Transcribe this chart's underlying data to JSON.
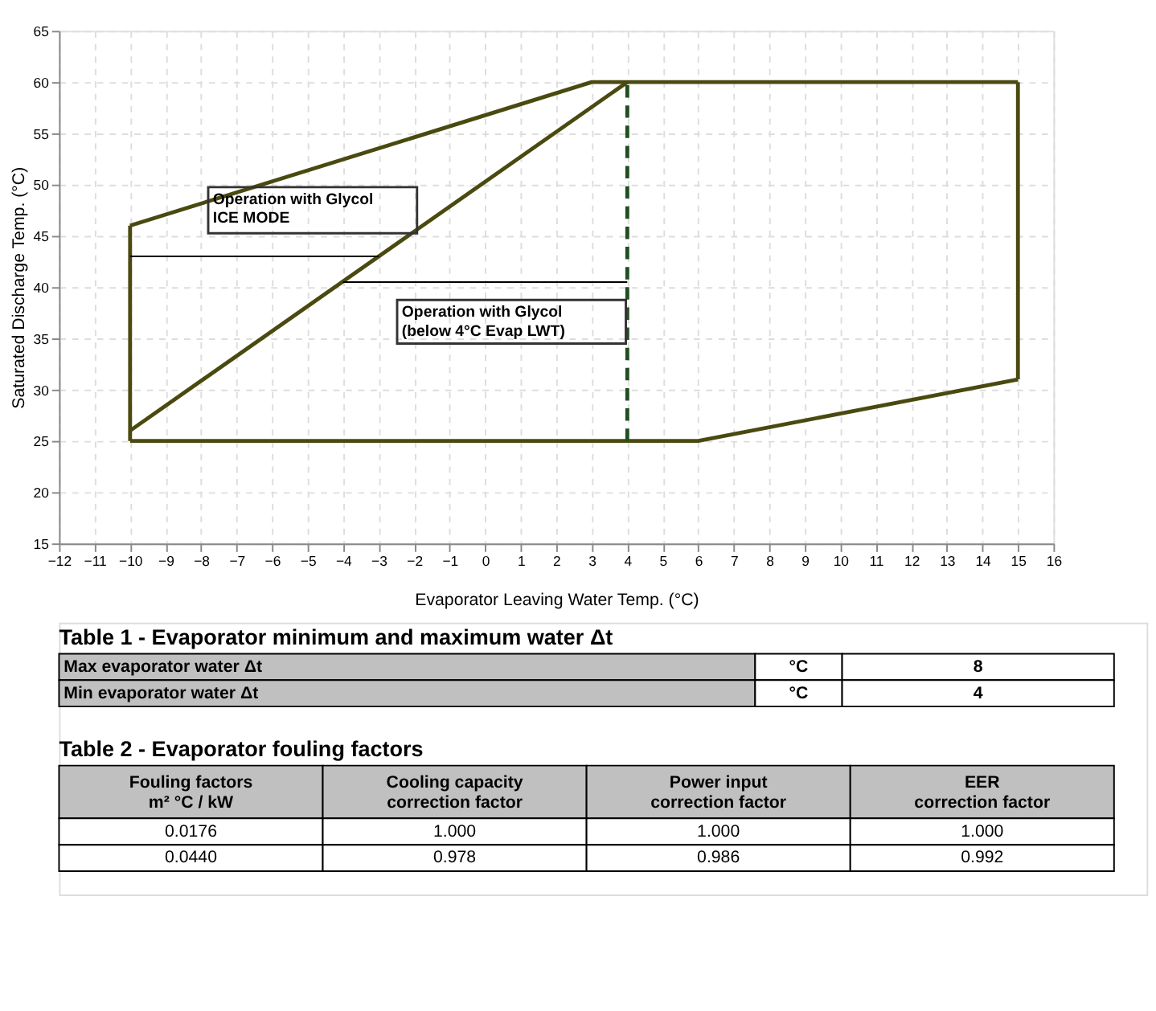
{
  "chart_data": {
    "type": "line",
    "xlabel": "Evaporator Leaving  Water Temp.  (°C)",
    "ylabel": "Saturated Discharge Temp. (°C)",
    "xlim": [
      -12,
      16
    ],
    "ylim": [
      15,
      65
    ],
    "xticks": [
      -12,
      -11,
      -10,
      -9,
      -8,
      -7,
      -6,
      -5,
      -4,
      -3,
      -2,
      -1,
      0,
      1,
      2,
      3,
      4,
      5,
      6,
      7,
      8,
      9,
      10,
      11,
      12,
      13,
      14,
      15,
      16
    ],
    "yticks": [
      15,
      20,
      25,
      30,
      35,
      40,
      45,
      50,
      55,
      60,
      65
    ],
    "grid": true,
    "marker": "none",
    "series": [
      {
        "color": "#4a4a10",
        "x": [
          -10,
          3,
          15
        ],
        "values": [
          46,
          60,
          60
        ]
      },
      {
        "color": "#4a4a10",
        "x": [
          -10,
          6,
          15
        ],
        "values": [
          25,
          25,
          31
        ]
      },
      {
        "color": "#4a4a10",
        "x": [
          -10,
          -10
        ],
        "values": [
          25,
          46
        ]
      },
      {
        "color": "#4a4a10",
        "x": [
          15,
          15
        ],
        "values": [
          31,
          60
        ]
      },
      {
        "color": "#4a4a10",
        "x": [
          -10,
          4
        ],
        "values": [
          26,
          60
        ]
      },
      {
        "color": "#1f4f1f",
        "line_style": "dashed",
        "x": [
          4,
          4
        ],
        "values": [
          25,
          60
        ]
      },
      {
        "color": "#000000",
        "x": [
          -10,
          -3
        ],
        "values": [
          43,
          43
        ]
      },
      {
        "color": "#000000",
        "x": [
          -4,
          4
        ],
        "values": [
          40.5,
          40.5
        ]
      }
    ],
    "annotations": [
      "Operation with Glycol\nICE MODE",
      "Operation with Glycol\n(below 4°C Evap LWT)",
      "Table 1 - Evaporator minimum and maximum water Δt",
      "Max evaporator water Δt",
      "°C",
      "8",
      "Min evaporator water Δt",
      "°C",
      "4",
      "Table 2 - Evaporator fouling factors",
      "Fouling factors\nm² °C / kW",
      "Cooling capacity\ncorrection factor",
      "Power input\ncorrection factor",
      "EER\ncorrection factor",
      "0.0176",
      "1.000",
      "1.000",
      "1.000",
      "0.0440",
      "0.978",
      "0.986",
      "0.992"
    ]
  }
}
